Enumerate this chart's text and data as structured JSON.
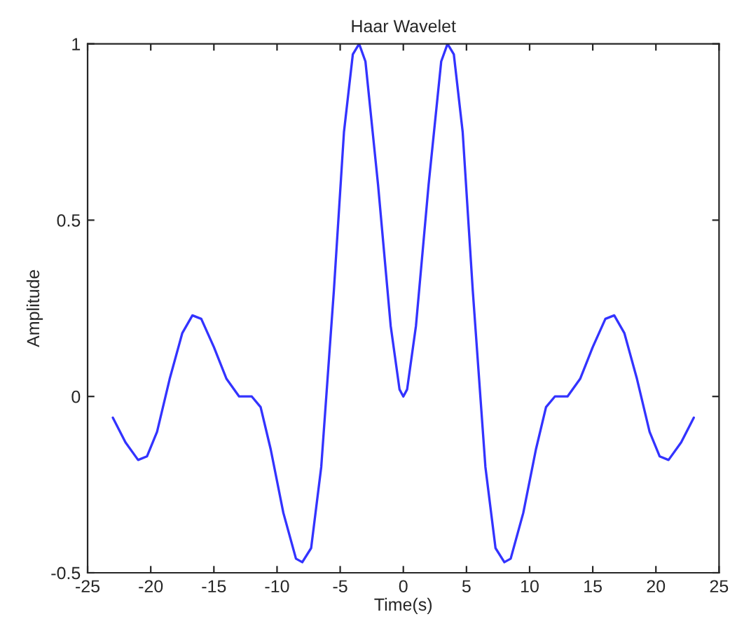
{
  "chart_data": {
    "type": "line",
    "title": "Haar Wavelet",
    "xlabel": "Time(s)",
    "ylabel": "Amplitude",
    "series": [
      {
        "color": "#3333ff",
        "x": [
          -23,
          -22,
          -21,
          -20.3,
          -19.5,
          -18.5,
          -17.5,
          -16.7,
          -16,
          -15,
          -14,
          -13,
          -12,
          -11.3,
          -10.5,
          -9.5,
          -8.5,
          -8,
          -7.3,
          -6.5,
          -5.5,
          -4.7,
          -4,
          -3.5,
          -3,
          -2,
          -1,
          -0.3,
          0,
          0.3,
          1,
          2,
          3,
          3.5,
          4,
          4.7,
          5.5,
          6.5,
          7.3,
          8,
          8.5,
          9.5,
          10.5,
          11.3,
          12,
          13,
          14,
          15,
          16,
          16.7,
          17.5,
          18.5,
          19.5,
          20.3,
          21,
          22,
          23
        ],
        "values": [
          -0.06,
          -0.13,
          -0.18,
          -0.17,
          -0.1,
          0.05,
          0.18,
          0.23,
          0.22,
          0.14,
          0.05,
          0.0,
          0.0,
          -0.03,
          -0.15,
          -0.33,
          -0.46,
          -0.47,
          -0.43,
          -0.2,
          0.3,
          0.75,
          0.97,
          1.0,
          0.95,
          0.6,
          0.2,
          0.02,
          0,
          0.02,
          0.2,
          0.6,
          0.95,
          1.0,
          0.97,
          0.75,
          0.3,
          -0.2,
          -0.43,
          -0.47,
          -0.46,
          -0.33,
          -0.15,
          -0.03,
          0.0,
          0.0,
          0.05,
          0.14,
          0.22,
          0.23,
          0.18,
          0.05,
          -0.1,
          -0.17,
          -0.18,
          -0.13,
          -0.06
        ]
      }
    ],
    "xlim": [
      -25,
      25
    ],
    "xticks": [
      -25,
      -20,
      -15,
      -10,
      -5,
      0,
      5,
      10,
      15,
      20,
      25
    ],
    "ylim": [
      -0.5,
      1
    ],
    "yticks": [
      -0.5,
      0,
      0.5,
      1
    ],
    "grid": false,
    "legend": false
  }
}
